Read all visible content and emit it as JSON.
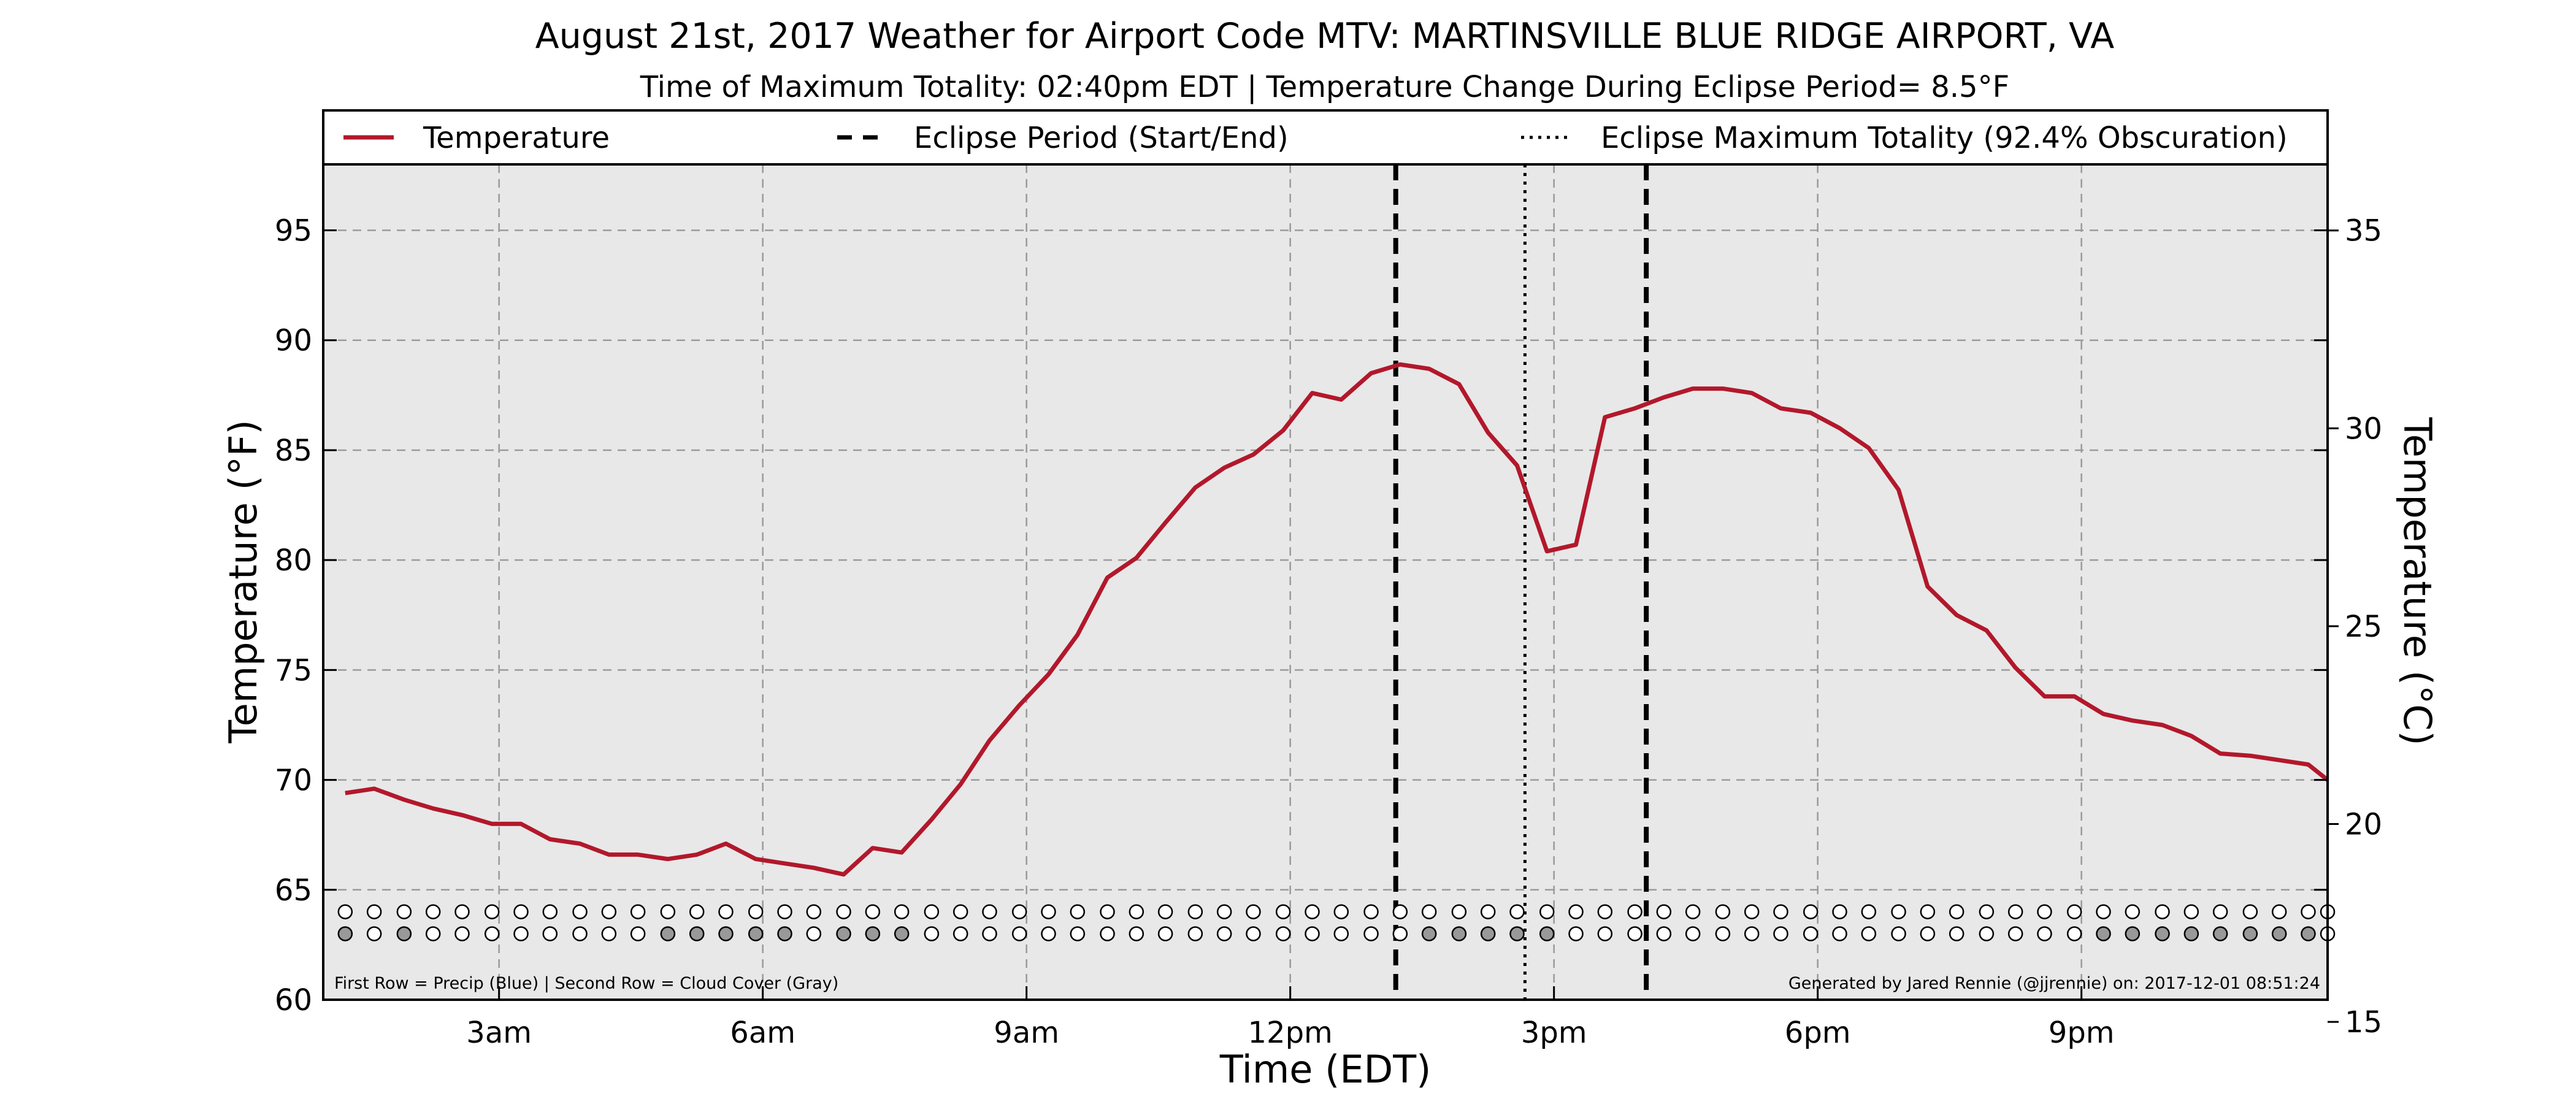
{
  "chart_data": {
    "type": "line",
    "title": "August 21st, 2017 Weather for Airport Code MTV: MARTINSVILLE BLUE RIDGE AIRPORT, VA",
    "subtitle": "Time of Maximum Totality: 02:40pm EDT | Temperature Change During Eclipse Period= 8.5°F",
    "xlabel": "Time (EDT)",
    "ylabel": "Temperature (°F)",
    "ylabel_right": "Temperature (°C)",
    "x_unit": "hours after midnight EDT",
    "xlim": [
      1,
      23.8
    ],
    "ylim": [
      60,
      98
    ],
    "ylim_right": [
      15.56,
      36.67
    ],
    "x_ticks": [
      {
        "value": 3,
        "label": "3am"
      },
      {
        "value": 6,
        "label": "6am"
      },
      {
        "value": 9,
        "label": "9am"
      },
      {
        "value": 12,
        "label": "12pm"
      },
      {
        "value": 15,
        "label": "3pm"
      },
      {
        "value": 18,
        "label": "6pm"
      },
      {
        "value": 21,
        "label": "9pm"
      }
    ],
    "y_ticks": [
      60,
      65,
      70,
      75,
      80,
      85,
      90,
      95
    ],
    "y_ticks_right": [
      15,
      20,
      25,
      30,
      35
    ],
    "grid": true,
    "legend_placement": "top",
    "legend": [
      {
        "label": "Temperature",
        "style": "solid"
      },
      {
        "label": "Eclipse Period (Start/End)",
        "style": "dashed"
      },
      {
        "label": "Eclipse Maximum Totality (92.4% Obscuration)",
        "style": "dotted"
      }
    ],
    "series": [
      {
        "name": "Temperature",
        "color": "#b2182b",
        "x": [
          1.25,
          1.58,
          1.92,
          2.25,
          2.58,
          2.92,
          3.25,
          3.58,
          3.92,
          4.25,
          4.58,
          4.92,
          5.25,
          5.58,
          5.92,
          6.25,
          6.58,
          6.92,
          7.25,
          7.58,
          7.92,
          8.25,
          8.58,
          8.92,
          9.25,
          9.58,
          9.92,
          10.25,
          10.58,
          10.92,
          11.25,
          11.58,
          11.92,
          12.25,
          12.58,
          12.92,
          13.25,
          13.58,
          13.92,
          14.25,
          14.58,
          14.92,
          15.25,
          15.58,
          15.92,
          16.25,
          16.58,
          16.92,
          17.25,
          17.58,
          17.92,
          18.25,
          18.58,
          18.92,
          19.25,
          19.58,
          19.92,
          20.25,
          20.58,
          20.92,
          21.25,
          21.58,
          21.92,
          22.25,
          22.58,
          22.92,
          23.25,
          23.58,
          23.8
        ],
        "values": [
          69.4,
          69.6,
          69.1,
          68.7,
          68.4,
          68.0,
          68.0,
          67.3,
          67.1,
          66.6,
          66.6,
          66.4,
          66.6,
          67.1,
          66.4,
          66.2,
          66.0,
          65.7,
          66.9,
          66.7,
          68.2,
          69.8,
          71.8,
          73.4,
          74.8,
          76.6,
          79.2,
          80.1,
          81.7,
          83.3,
          84.2,
          84.8,
          85.9,
          87.6,
          87.3,
          88.5,
          88.9,
          88.7,
          88.0,
          85.8,
          84.3,
          80.4,
          80.7,
          86.5,
          86.9,
          87.4,
          87.8,
          87.8,
          87.6,
          86.9,
          86.7,
          86.0,
          85.1,
          83.2,
          78.8,
          77.5,
          76.8,
          75.1,
          73.8,
          73.8,
          73.0,
          72.7,
          72.5,
          72.0,
          71.2,
          71.1,
          70.9,
          70.7,
          70.0
        ]
      }
    ],
    "vertical_lines": [
      {
        "name": "Eclipse Start",
        "x": 13.2,
        "style": "dashed"
      },
      {
        "name": "Eclipse Maximum Totality",
        "x": 14.67,
        "style": "dotted"
      },
      {
        "name": "Eclipse End",
        "x": 16.05,
        "style": "dashed"
      }
    ],
    "indicator_rows": {
      "precip_y": 64.0,
      "cloud_y": 63.0,
      "x": [
        1.25,
        1.58,
        1.92,
        2.25,
        2.58,
        2.92,
        3.25,
        3.58,
        3.92,
        4.25,
        4.58,
        4.92,
        5.25,
        5.58,
        5.92,
        6.25,
        6.58,
        6.92,
        7.25,
        7.58,
        7.92,
        8.25,
        8.58,
        8.92,
        9.25,
        9.58,
        9.92,
        10.25,
        10.58,
        10.92,
        11.25,
        11.58,
        11.92,
        12.25,
        12.58,
        12.92,
        13.25,
        13.58,
        13.92,
        14.25,
        14.58,
        14.92,
        15.25,
        15.58,
        15.92,
        16.25,
        16.58,
        16.92,
        17.25,
        17.58,
        17.92,
        18.25,
        18.58,
        18.92,
        19.25,
        19.58,
        19.92,
        20.25,
        20.58,
        20.92,
        21.25,
        21.58,
        21.92,
        22.25,
        22.58,
        22.92,
        23.25,
        23.58,
        23.8
      ],
      "precip": [
        0,
        0,
        0,
        0,
        0,
        0,
        0,
        0,
        0,
        0,
        0,
        0,
        0,
        0,
        0,
        0,
        0,
        0,
        0,
        0,
        0,
        0,
        0,
        0,
        0,
        0,
        0,
        0,
        0,
        0,
        0,
        0,
        0,
        0,
        0,
        0,
        0,
        0,
        0,
        0,
        0,
        0,
        0,
        0,
        0,
        0,
        0,
        0,
        0,
        0,
        0,
        0,
        0,
        0,
        0,
        0,
        0,
        0,
        0,
        0,
        0,
        0,
        0,
        0,
        0,
        0,
        0,
        0,
        0
      ],
      "cloud": [
        1,
        0,
        1,
        0,
        0,
        0,
        0,
        0,
        0,
        0,
        0,
        1,
        1,
        1,
        1,
        1,
        0,
        1,
        1,
        1,
        0,
        0,
        0,
        0,
        0,
        0,
        0,
        0,
        0,
        0,
        0,
        0,
        0,
        0,
        0,
        0,
        0,
        1,
        1,
        1,
        1,
        1,
        0,
        0,
        0,
        0,
        0,
        0,
        0,
        0,
        0,
        0,
        0,
        0,
        0,
        0,
        0,
        0,
        0,
        0,
        1,
        1,
        1,
        1,
        1,
        1,
        1,
        1,
        0
      ],
      "precip_color": "#4a90d9",
      "cloud_color": "#999999"
    },
    "annotation_left": "First Row = Precip (Blue) | Second Row = Cloud Cover (Gray)",
    "annotation_right": "Generated by Jared Rennie (@jjrennie) on: 2017-12-01 08:51:24"
  }
}
